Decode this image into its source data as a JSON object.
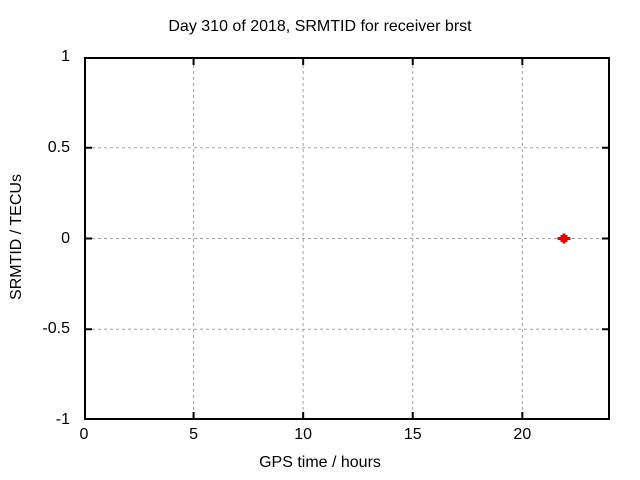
{
  "chart_data": {
    "type": "scatter",
    "title": "Day 310 of 2018, SRMTID for receiver brst",
    "xlabel": "GPS time / hours",
    "ylabel": "SRMTID / TECUs",
    "xlim": [
      0,
      24
    ],
    "ylim": [
      -1,
      1
    ],
    "grid": true,
    "legend": "none",
    "x_ticks": [
      {
        "value": 0,
        "label": "0"
      },
      {
        "value": 5,
        "label": "5"
      },
      {
        "value": 10,
        "label": "10"
      },
      {
        "value": 15,
        "label": "15"
      },
      {
        "value": 20,
        "label": "20"
      }
    ],
    "y_ticks": [
      {
        "value": 1,
        "label": "1"
      },
      {
        "value": 0.5,
        "label": "0.5"
      },
      {
        "value": 0,
        "label": "0"
      },
      {
        "value": -0.5,
        "label": "-0.5"
      },
      {
        "value": -1,
        "label": "-1"
      }
    ],
    "series": [
      {
        "name": "SRMTID",
        "marker": "filled-square-plus",
        "color": "#ee0000",
        "points": [
          {
            "x": 21.9,
            "y": 0.0
          }
        ]
      }
    ],
    "colors": {
      "background": "#ffffff",
      "axis": "#000000",
      "grid": "#a0a0a0",
      "text": "#000000",
      "marker": "#ee0000"
    }
  }
}
